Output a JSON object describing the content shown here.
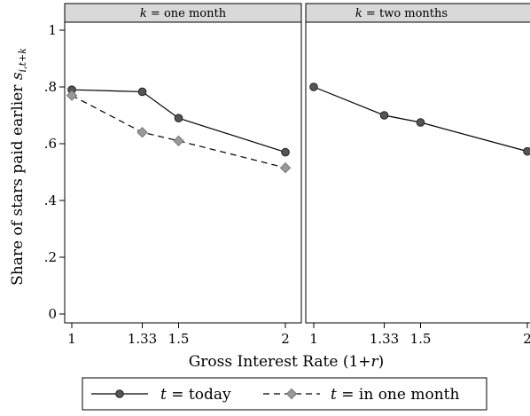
{
  "chart_data": {
    "type": "line",
    "panels": [
      {
        "strip": {
          "var": "k",
          "eq": " = ",
          "value": "one month"
        },
        "series": [
          {
            "key": "today",
            "values": [
              [
                1,
                0.79
              ],
              [
                1.33,
                0.783
              ],
              [
                1.5,
                0.69
              ],
              [
                2,
                0.57
              ]
            ]
          },
          {
            "key": "one_month",
            "values": [
              [
                1,
                0.77
              ],
              [
                1.33,
                0.64
              ],
              [
                1.5,
                0.61
              ],
              [
                2,
                0.515
              ]
            ]
          }
        ]
      },
      {
        "strip": {
          "var": "k",
          "eq": " = ",
          "value": "two months"
        },
        "series": [
          {
            "key": "today",
            "values": [
              [
                1,
                0.8
              ],
              [
                1.33,
                0.7
              ],
              [
                1.5,
                0.675
              ],
              [
                2,
                0.573
              ]
            ]
          }
        ]
      }
    ],
    "xlabel": "Gross Interest Rate (1+r)",
    "ylabel": "Share of stars paid earlier s",
    "ylabel_subscript": "i,t+k",
    "xticks": [
      "1",
      "1.33",
      "1.5",
      "2"
    ],
    "xtick_values": [
      1,
      1.33,
      1.5,
      2
    ],
    "yticks": [
      "0",
      ".2",
      ".4",
      ".6",
      ".8",
      "1"
    ],
    "ytick_values": [
      0,
      0.2,
      0.4,
      0.6,
      0.8,
      1
    ],
    "xlim": [
      1,
      2
    ],
    "ylim": [
      0,
      1
    ],
    "grid": false,
    "legend_position": "bottom",
    "legend": [
      {
        "key": "today",
        "var": "t",
        "eq": " = ",
        "text": "today",
        "style": "solid",
        "marker": "circle",
        "color": "#555555"
      },
      {
        "key": "one_month",
        "var": "t",
        "eq": " = ",
        "text": "in one month",
        "style": "dashed",
        "marker": "diamond",
        "color": "#999999"
      }
    ]
  }
}
